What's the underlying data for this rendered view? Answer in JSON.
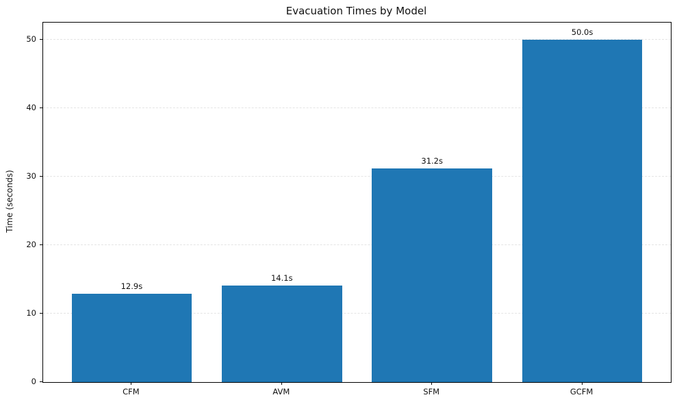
{
  "chart_data": {
    "type": "bar",
    "title": "Evacuation Times by Model",
    "xlabel": "",
    "ylabel": "Time (seconds)",
    "categories": [
      "CFM",
      "AVM",
      "SFM",
      "GCFM"
    ],
    "values": [
      12.9,
      14.1,
      31.2,
      50.0
    ],
    "bar_value_labels": [
      "12.9s",
      "14.1s",
      "31.2s",
      "50.0s"
    ],
    "yticks": [
      0,
      10,
      20,
      30,
      40,
      50
    ],
    "ylim": [
      0,
      52.5
    ],
    "bar_color": "#1f77b4",
    "grid": "horizontal-dashed",
    "grid_color": "#e4e4e4",
    "legend": "none"
  }
}
